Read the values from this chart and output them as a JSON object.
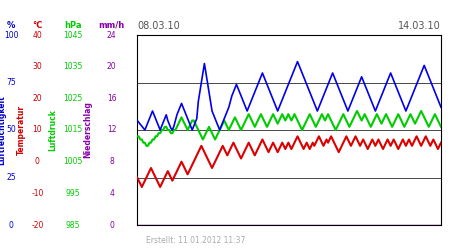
{
  "title_left": "08.03.10",
  "title_right": "14.03.10",
  "footer": "Erstellt: 11.01.2012 11:37",
  "bg_color": "#ffffff",
  "plot_bg": "#ffffff",
  "axis_labels": {
    "luftfeuchtigkeit": {
      "text": "Luftfeuchtigkeit",
      "color": "#0000cc"
    },
    "temperatur": {
      "text": "Temperatur",
      "color": "#cc0000"
    },
    "luftdruck": {
      "text": "Luftdruck",
      "color": "#00cc00"
    },
    "niederschlag": {
      "text": "Niederschlag",
      "color": "#8800aa"
    }
  },
  "left_axes": {
    "humidity": {
      "label": "%",
      "color": "#0000cc",
      "ticks": [
        0,
        25,
        50,
        75,
        100
      ],
      "ylim": [
        0,
        100
      ]
    },
    "temp": {
      "label": "°C",
      "color": "#cc0000",
      "ticks": [
        -20,
        -10,
        0,
        10,
        20,
        30,
        40
      ],
      "ylim": [
        -20,
        40
      ]
    },
    "pressure": {
      "label": "hPa",
      "color": "#00cc00",
      "ticks": [
        985,
        995,
        1005,
        1015,
        1025,
        1035,
        1045
      ],
      "ylim": [
        985,
        1045
      ]
    },
    "precip": {
      "label": "mm/h",
      "color": "#8800aa",
      "ticks": [
        0,
        4,
        8,
        12,
        16,
        20,
        24
      ],
      "ylim": [
        0,
        24
      ]
    }
  },
  "line_colors": {
    "humidity": "#0000ee",
    "temp": "#dd0000",
    "pressure": "#00cc00",
    "precip": "#8800bb"
  },
  "n_points": 200,
  "humidity_data": [
    55,
    54,
    53,
    52,
    51,
    50,
    52,
    54,
    56,
    58,
    60,
    58,
    56,
    54,
    52,
    50,
    52,
    54,
    56,
    58,
    55,
    53,
    51,
    50,
    52,
    55,
    58,
    60,
    62,
    64,
    62,
    60,
    58,
    56,
    54,
    52,
    50,
    52,
    54,
    56,
    65,
    70,
    75,
    80,
    85,
    80,
    75,
    70,
    65,
    60,
    58,
    56,
    54,
    52,
    50,
    52,
    54,
    56,
    58,
    60,
    62,
    65,
    68,
    70,
    72,
    74,
    72,
    70,
    68,
    66,
    64,
    62,
    60,
    62,
    64,
    66,
    68,
    70,
    72,
    74,
    76,
    78,
    80,
    78,
    76,
    74,
    72,
    70,
    68,
    66,
    64,
    62,
    60,
    62,
    64,
    66,
    68,
    70,
    72,
    74,
    76,
    78,
    80,
    82,
    84,
    86,
    84,
    82,
    80,
    78,
    76,
    74,
    72,
    70,
    68,
    66,
    64,
    62,
    60,
    62,
    64,
    66,
    68,
    70,
    72,
    74,
    76,
    78,
    80,
    78,
    76,
    74,
    72,
    70,
    68,
    66,
    64,
    62,
    60,
    62,
    64,
    66,
    68,
    70,
    72,
    74,
    76,
    78,
    76,
    74,
    72,
    70,
    68,
    66,
    64,
    62,
    60,
    62,
    64,
    66,
    68,
    70,
    72,
    74,
    76,
    78,
    80,
    78,
    76,
    74,
    72,
    70,
    68,
    66,
    64,
    62,
    60,
    62,
    64,
    66,
    68,
    70,
    72,
    74,
    76,
    78,
    80,
    82,
    84,
    82,
    80,
    78,
    76,
    74,
    72,
    70,
    68,
    66,
    64,
    62
  ],
  "temp_data": [
    -5,
    -6,
    -7,
    -8,
    -7,
    -6,
    -5,
    -4,
    -3,
    -2,
    -3,
    -4,
    -5,
    -6,
    -7,
    -8,
    -7,
    -6,
    -5,
    -4,
    -3,
    -4,
    -5,
    -6,
    -5,
    -4,
    -3,
    -2,
    -1,
    0,
    -1,
    -2,
    -3,
    -4,
    -3,
    -2,
    -1,
    0,
    1,
    2,
    3,
    4,
    5,
    4,
    3,
    2,
    1,
    0,
    -1,
    -2,
    -1,
    0,
    1,
    2,
    3,
    4,
    5,
    4,
    3,
    2,
    3,
    4,
    5,
    6,
    5,
    4,
    3,
    2,
    1,
    2,
    3,
    4,
    5,
    6,
    5,
    4,
    3,
    2,
    3,
    4,
    5,
    6,
    7,
    6,
    5,
    4,
    3,
    4,
    5,
    6,
    5,
    4,
    3,
    4,
    5,
    6,
    5,
    4,
    5,
    6,
    5,
    4,
    5,
    6,
    7,
    8,
    7,
    6,
    5,
    4,
    5,
    6,
    5,
    4,
    5,
    6,
    5,
    6,
    7,
    8,
    7,
    6,
    5,
    6,
    7,
    6,
    7,
    8,
    7,
    6,
    5,
    4,
    3,
    4,
    5,
    6,
    7,
    8,
    7,
    6,
    5,
    6,
    7,
    8,
    7,
    6,
    5,
    6,
    7,
    6,
    5,
    4,
    5,
    6,
    7,
    6,
    5,
    6,
    7,
    6,
    5,
    4,
    5,
    6,
    7,
    6,
    5,
    6,
    7,
    6,
    5,
    4,
    5,
    6,
    7,
    6,
    5,
    6,
    7,
    6,
    5,
    6,
    7,
    8,
    7,
    6,
    5,
    6,
    7,
    8,
    7,
    6,
    5,
    6,
    7,
    6,
    5,
    4,
    5,
    6
  ],
  "pressure_data": [
    1013,
    1013,
    1012,
    1012,
    1011,
    1011,
    1010,
    1010,
    1011,
    1011,
    1012,
    1012,
    1013,
    1013,
    1014,
    1014,
    1015,
    1015,
    1016,
    1016,
    1015,
    1015,
    1014,
    1014,
    1015,
    1015,
    1016,
    1017,
    1018,
    1019,
    1018,
    1017,
    1016,
    1015,
    1016,
    1017,
    1018,
    1018,
    1017,
    1016,
    1015,
    1014,
    1013,
    1012,
    1013,
    1014,
    1015,
    1016,
    1015,
    1014,
    1013,
    1012,
    1013,
    1014,
    1015,
    1016,
    1017,
    1018,
    1017,
    1016,
    1015,
    1016,
    1017,
    1018,
    1019,
    1018,
    1017,
    1016,
    1015,
    1016,
    1017,
    1018,
    1019,
    1020,
    1019,
    1018,
    1017,
    1016,
    1017,
    1018,
    1019,
    1020,
    1019,
    1018,
    1017,
    1016,
    1017,
    1018,
    1019,
    1020,
    1019,
    1018,
    1017,
    1018,
    1019,
    1020,
    1019,
    1018,
    1019,
    1020,
    1019,
    1018,
    1019,
    1020,
    1019,
    1018,
    1017,
    1016,
    1015,
    1016,
    1017,
    1018,
    1019,
    1020,
    1019,
    1018,
    1017,
    1016,
    1017,
    1018,
    1019,
    1020,
    1019,
    1018,
    1019,
    1020,
    1019,
    1018,
    1017,
    1016,
    1015,
    1016,
    1017,
    1018,
    1019,
    1020,
    1019,
    1018,
    1017,
    1016,
    1017,
    1018,
    1019,
    1020,
    1021,
    1020,
    1019,
    1018,
    1019,
    1020,
    1019,
    1018,
    1017,
    1016,
    1017,
    1018,
    1019,
    1020,
    1019,
    1018,
    1017,
    1018,
    1019,
    1020,
    1019,
    1018,
    1017,
    1016,
    1017,
    1018,
    1019,
    1020,
    1019,
    1018,
    1017,
    1016,
    1017,
    1018,
    1019,
    1020,
    1019,
    1018,
    1017,
    1018,
    1019,
    1020,
    1021,
    1020,
    1019,
    1018,
    1017,
    1016,
    1017,
    1018,
    1019,
    1020,
    1019,
    1018,
    1017,
    1016
  ],
  "precip_data": [
    0,
    0,
    0,
    0,
    0,
    0,
    0,
    0,
    0,
    0,
    0,
    0,
    0,
    0,
    0,
    0,
    0,
    0,
    0,
    0,
    0,
    0,
    0,
    0,
    0,
    0,
    0,
    0,
    0,
    0,
    0,
    0,
    0,
    0,
    0,
    0,
    0,
    0,
    0,
    0,
    0,
    0,
    0,
    0,
    0,
    0,
    0,
    0,
    0,
    0,
    0,
    0,
    0,
    0,
    0,
    0,
    0,
    0,
    0,
    0,
    0,
    0,
    0,
    0,
    0,
    0,
    0,
    0,
    0,
    0,
    0,
    0,
    0,
    0,
    0,
    0,
    0,
    0,
    0,
    0,
    0,
    0,
    0,
    0,
    0,
    0,
    0,
    0,
    0,
    0,
    0,
    0,
    0,
    0,
    0,
    0,
    0,
    0,
    0,
    0,
    0,
    0,
    0,
    0,
    0,
    0,
    0,
    0,
    0,
    0,
    0,
    0,
    0,
    0,
    0,
    0,
    0,
    0,
    0,
    0,
    0,
    0,
    0,
    0,
    0,
    0,
    0,
    0,
    0,
    0,
    0,
    0,
    0,
    0,
    0,
    0,
    0,
    0,
    0,
    0,
    0,
    0,
    0,
    0,
    0,
    0,
    0,
    0,
    0,
    0,
    0,
    0,
    0,
    0,
    0,
    0,
    0,
    0,
    0,
    0,
    0,
    0,
    0,
    0,
    0,
    0,
    0,
    0,
    0,
    0,
    0,
    0,
    0,
    0,
    0,
    0,
    0,
    0,
    0,
    0,
    0,
    0,
    0,
    0,
    0,
    0,
    0,
    0,
    0,
    0,
    0,
    0,
    0,
    0,
    0,
    0,
    0,
    0,
    0,
    0
  ],
  "grid_color": "#000000",
  "font_color_dates": "#555555"
}
